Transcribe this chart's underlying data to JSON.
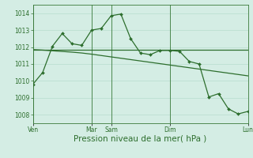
{
  "bg_color": "#d4ede4",
  "grid_color": "#b0d8c8",
  "line_color": "#2d6e2d",
  "xlabel": "Pression niveau de la mer( hPa )",
  "xlabel_fontsize": 7.5,
  "ylim": [
    1007.5,
    1014.5
  ],
  "yticks": [
    1008,
    1009,
    1010,
    1011,
    1012,
    1013,
    1014
  ],
  "day_labels": [
    "Ven",
    "Mar",
    "Sam",
    "Dim",
    "Lun"
  ],
  "day_x": [
    0,
    6,
    8,
    14,
    22
  ],
  "n_points": 23,
  "s1": [
    1009.8,
    1010.5,
    1012.05,
    1012.8,
    1012.2,
    1012.1,
    1013.0,
    1013.1,
    1013.85,
    1013.95,
    1012.5,
    1011.65,
    1011.55,
    1011.8,
    1011.8,
    1011.75,
    1011.15,
    1011.0,
    1009.05,
    1009.25,
    1008.35,
    1008.05,
    1008.2
  ],
  "s2": [
    1011.85,
    1011.85,
    1011.85,
    1011.85,
    1011.85,
    1011.85,
    1011.85,
    1011.85,
    1011.85,
    1011.85,
    1011.85,
    1011.85,
    1011.85,
    1011.85,
    1011.85,
    1011.85,
    1011.85,
    1011.85,
    1011.85,
    1011.85,
    1011.85,
    1011.85,
    1011.85
  ],
  "s3": [
    1011.85,
    1011.82,
    1011.78,
    1011.74,
    1011.7,
    1011.65,
    1011.58,
    1011.5,
    1011.42,
    1011.34,
    1011.26,
    1011.18,
    1011.1,
    1011.02,
    1010.94,
    1010.86,
    1010.78,
    1010.7,
    1010.62,
    1010.54,
    1010.46,
    1010.38,
    1010.3
  ],
  "vline_x": [
    0,
    6,
    8,
    14,
    22
  ],
  "vline_color": "#3a7a3a",
  "tick_fontsize": 5.5,
  "lw": 0.9,
  "ms": 2.0
}
